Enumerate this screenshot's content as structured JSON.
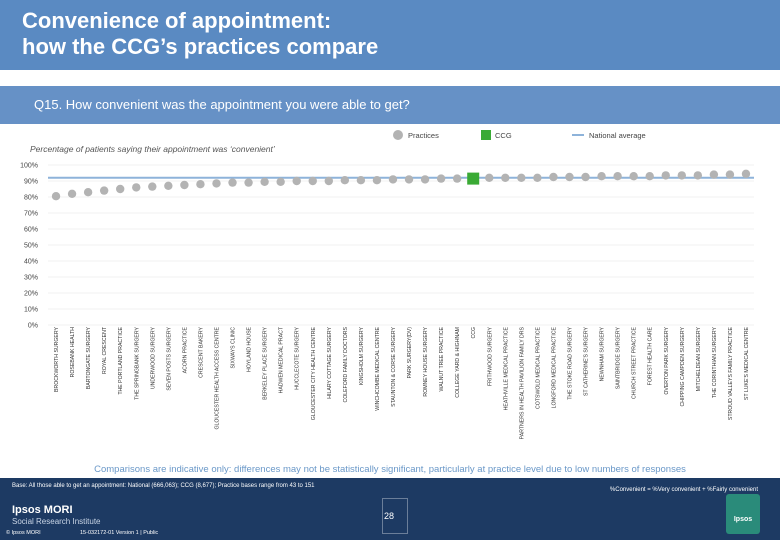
{
  "header": {
    "title": "Convenience of appointment:\nhow the CCG’s practices compare"
  },
  "question": "Q15. How convenient was the appointment you were able to get?",
  "colors": {
    "header": "#5a8ac2",
    "practice": "#b3b3b3",
    "ccg": "#3aaa35",
    "national": "#8eb3da",
    "footer": "#1d3a63"
  },
  "chart_data": {
    "type": "scatter",
    "subtitle": "Percentage of patients saying their appointment was ‘convenient’",
    "legend": [
      "Practices",
      "CCG",
      "National average"
    ],
    "legend_position": "top-right",
    "ylim": [
      0,
      100
    ],
    "yticks": [
      "0%",
      "10%",
      "20%",
      "30%",
      "40%",
      "50%",
      "60%",
      "70%",
      "80%",
      "90%",
      "100%"
    ],
    "ytick_values": [
      0,
      10,
      20,
      30,
      40,
      50,
      60,
      70,
      80,
      90,
      100
    ],
    "national_average": 92,
    "categories": [
      "BROCKWORTH SURGERY",
      "ROSEBANK HEALTH",
      "BARTONGATE SURGERY",
      "ROYAL CRESCENT",
      "THE PORTLAND PRACTICE",
      "THE SPRINGBANK SURGERY",
      "UNDERWOOD SURGERY",
      "SEVEN POSTS SURGERY",
      "ACORN PRACTICE",
      "CRESCENT BAKERY",
      "GLOUCESTER HEALTH ACCESS CENTRE",
      "SIXWAYS CLINIC",
      "HOYLAND HOUSE",
      "BERKELEY PLACE SURGERY",
      "HADWEN MEDICAL PRACT",
      "HUCCLECOTE SURGERY",
      "GLOUCESTER CITY HEALTH CENTRE",
      "HILARY COTTAGE SURGERY",
      "COLEFORD FAMILY DOCTORS",
      "KINGSHOLM SURGERY",
      "WINCHCOMBE MEDICAL CENTRE",
      "STAUNTON & CORSE SURGERY",
      "PARK SURGERY(DV)",
      "ROMNEY HOUSE SURGERY",
      "WALNUT TREE PRACTICE",
      "COLLEGE YARD & HIGHNAM",
      "CCG",
      "FRITHWOOD SURGERY",
      "HEATHVILLE MEDICAL PRACTICE",
      "PARTNERS IN HEALTH PAVILION FAMILY DRS",
      "COTSWOLD MEDICAL PRACTICE",
      "LONGFORD MEDICAL PRACTICE",
      "THE STOKE ROAD SURGERY",
      "ST CATHERINE'S SURGERY",
      "NEWNHAM SURGERY",
      "SAINTBRIDGE SURGERY",
      "CHURCH STREET PRACTICE",
      "FOREST HEALTH CARE",
      "OVERTON PARK SURGERY",
      "CHIPPING CAMPDEN SURGERY",
      "MITCHELDEAN SURGERY",
      "THE CORINTHIAN SURGERY",
      "STROUD VALLEYS FAMILY PRACTICE",
      "ST LUKE'S MEDICAL CENTRE"
    ],
    "values": [
      80.5,
      82,
      83,
      84,
      85,
      86,
      86.5,
      87,
      87.5,
      88,
      88.5,
      89,
      89,
      89.5,
      89.5,
      90,
      90,
      90,
      90.5,
      90.5,
      90.5,
      91,
      91,
      91,
      91.5,
      91.5,
      91.5,
      92,
      92,
      92,
      92,
      92.5,
      92.5,
      92.5,
      93,
      93,
      93,
      93,
      93.5,
      93.5,
      93.5,
      94,
      94,
      94.5
    ],
    "ccg_value": 91.5
  },
  "caveat": "Comparisons are indicative only: differences may not be statistically significant, particularly at practice level due to low numbers of responses",
  "footer": {
    "base": "Base: All those able to get an appointment: National (666,063); CCG (8,677); Practice bases range from 43 to 151",
    "formula": "%Convenient = %Very convenient + %Fairly convenient",
    "logo_line1": "Ipsos MORI",
    "logo_line2": "Social Research Institute",
    "copyright": "© Ipsos MORI",
    "version": "15-032172-01 Version 1 | Public",
    "page": "28",
    "brand": "Ipsos"
  }
}
